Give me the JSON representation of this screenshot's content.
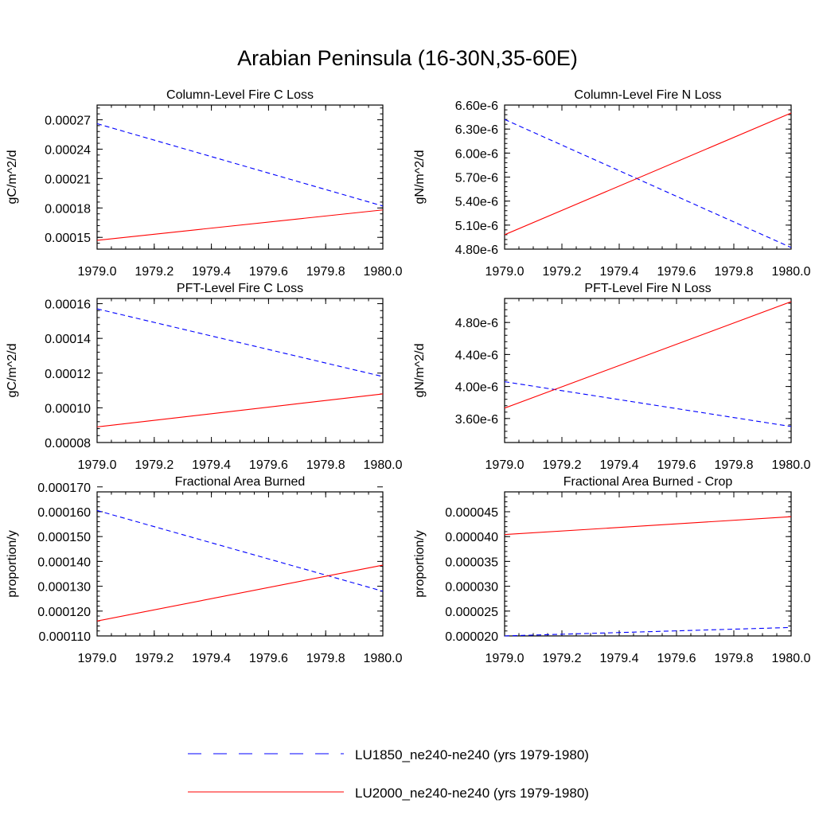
{
  "title": "Arabian Peninsula (16-30N,35-60E)",
  "colors": {
    "LU1850": "#0000ff",
    "LU2000": "#ff0000"
  },
  "legend": [
    {
      "key": "LU1850",
      "label": "LU1850_ne240-ne240 (yrs 1979-1980)",
      "dash": true
    },
    {
      "key": "LU2000",
      "label": "LU2000_ne240-ne240 (yrs 1979-1980)",
      "dash": false
    }
  ],
  "chart_data": [
    {
      "type": "line",
      "title": "Column-Level Fire C Loss",
      "ylabel": "gC/m^2/d",
      "xlim": [
        1979.0,
        1980.0
      ],
      "ylim": [
        0.000138,
        0.000285
      ],
      "xticks": [
        "1979.0",
        "1979.2",
        "1979.4",
        "1979.6",
        "1979.8",
        "1980.0"
      ],
      "yticks": [
        {
          "v": 0.00015,
          "label": "0.00015"
        },
        {
          "v": 0.00018,
          "label": "0.00018"
        },
        {
          "v": 0.00021,
          "label": "0.00021"
        },
        {
          "v": 0.00024,
          "label": "0.00024"
        },
        {
          "v": 0.00027,
          "label": "0.00027"
        }
      ],
      "x": [
        1979.0,
        1980.0
      ],
      "series": [
        {
          "key": "LU1850",
          "values": [
            0.000266,
            0.000182
          ]
        },
        {
          "key": "LU2000",
          "values": [
            0.000147,
            0.000178
          ]
        }
      ]
    },
    {
      "type": "line",
      "title": "Column-Level Fire N Loss",
      "ylabel": "gN/m^2/d",
      "xlim": [
        1979.0,
        1980.0
      ],
      "ylim": [
        4.8e-06,
        6.6e-06
      ],
      "xticks": [
        "1979.0",
        "1979.2",
        "1979.4",
        "1979.6",
        "1979.8",
        "1980.0"
      ],
      "yticks": [
        {
          "v": 4.8e-06,
          "label": "4.80e-6"
        },
        {
          "v": 5.1e-06,
          "label": "5.10e-6"
        },
        {
          "v": 5.4e-06,
          "label": "5.40e-6"
        },
        {
          "v": 5.7e-06,
          "label": "5.70e-6"
        },
        {
          "v": 6e-06,
          "label": "6.00e-6"
        },
        {
          "v": 6.3e-06,
          "label": "6.30e-6"
        },
        {
          "v": 6.6e-06,
          "label": "6.60e-6"
        }
      ],
      "x": [
        1979.0,
        1980.0
      ],
      "series": [
        {
          "key": "LU1850",
          "values": [
            6.42e-06,
            4.82e-06
          ]
        },
        {
          "key": "LU2000",
          "values": [
            4.98e-06,
            6.5e-06
          ]
        }
      ]
    },
    {
      "type": "line",
      "title": "PFT-Level Fire C Loss",
      "ylabel": "gC/m^2/d",
      "xlim": [
        1979.0,
        1980.0
      ],
      "ylim": [
        8e-05,
        0.000163
      ],
      "xticks": [
        "1979.0",
        "1979.2",
        "1979.4",
        "1979.6",
        "1979.8",
        "1980.0"
      ],
      "yticks": [
        {
          "v": 8e-05,
          "label": "0.00008"
        },
        {
          "v": 0.0001,
          "label": "0.00010"
        },
        {
          "v": 0.00012,
          "label": "0.00012"
        },
        {
          "v": 0.00014,
          "label": "0.00014"
        },
        {
          "v": 0.00016,
          "label": "0.00016"
        }
      ],
      "x": [
        1979.0,
        1980.0
      ],
      "series": [
        {
          "key": "LU1850",
          "values": [
            0.000157,
            0.000118
          ]
        },
        {
          "key": "LU2000",
          "values": [
            8.9e-05,
            0.000108
          ]
        }
      ]
    },
    {
      "type": "line",
      "title": "PFT-Level Fire N Loss",
      "ylabel": "gN/m^2/d",
      "xlim": [
        1979.0,
        1980.0
      ],
      "ylim": [
        3.3e-06,
        5.1e-06
      ],
      "xticks": [
        "1979.0",
        "1979.2",
        "1979.4",
        "1979.6",
        "1979.8",
        "1980.0"
      ],
      "yticks": [
        {
          "v": 3.6e-06,
          "label": "3.60e-6"
        },
        {
          "v": 4e-06,
          "label": "4.00e-6"
        },
        {
          "v": 4.4e-06,
          "label": "4.40e-6"
        },
        {
          "v": 4.8e-06,
          "label": "4.80e-6"
        }
      ],
      "x": [
        1979.0,
        1980.0
      ],
      "series": [
        {
          "key": "LU1850",
          "values": [
            4.06e-06,
            3.5e-06
          ]
        },
        {
          "key": "LU2000",
          "values": [
            3.73e-06,
            5.06e-06
          ]
        }
      ]
    },
    {
      "type": "line",
      "title": "Fractional Area Burned",
      "ylabel": "proportion/y",
      "xlim": [
        1979.0,
        1980.0
      ],
      "ylim": [
        0.00011,
        0.000168
      ],
      "xticks": [
        "1979.0",
        "1979.2",
        "1979.4",
        "1979.6",
        "1979.8",
        "1980.0"
      ],
      "yticks": [
        {
          "v": 0.00011,
          "label": "0.000110"
        },
        {
          "v": 0.00012,
          "label": "0.000120"
        },
        {
          "v": 0.00013,
          "label": "0.000130"
        },
        {
          "v": 0.00014,
          "label": "0.000140"
        },
        {
          "v": 0.00015,
          "label": "0.000150"
        },
        {
          "v": 0.00016,
          "label": "0.000160"
        },
        {
          "v": 0.00017,
          "label": "0.000170"
        }
      ],
      "x": [
        1979.0,
        1980.0
      ],
      "series": [
        {
          "key": "LU1850",
          "values": [
            0.0001605,
            0.000128
          ]
        },
        {
          "key": "LU2000",
          "values": [
            0.000116,
            0.0001385
          ]
        }
      ]
    },
    {
      "type": "line",
      "title": "Fractional Area Burned - Crop",
      "ylabel": "proportion/y",
      "xlim": [
        1979.0,
        1980.0
      ],
      "ylim": [
        2e-05,
        4.9e-05
      ],
      "xticks": [
        "1979.0",
        "1979.2",
        "1979.4",
        "1979.6",
        "1979.8",
        "1980.0"
      ],
      "yticks": [
        {
          "v": 2e-05,
          "label": "0.000020"
        },
        {
          "v": 2.5e-05,
          "label": "0.000025"
        },
        {
          "v": 3e-05,
          "label": "0.000030"
        },
        {
          "v": 3.5e-05,
          "label": "0.000035"
        },
        {
          "v": 4e-05,
          "label": "0.000040"
        },
        {
          "v": 4.5e-05,
          "label": "0.000045"
        }
      ],
      "x": [
        1979.0,
        1980.0
      ],
      "series": [
        {
          "key": "LU1850",
          "values": [
            2e-05,
            2.17e-05
          ]
        },
        {
          "key": "LU2000",
          "values": [
            4.04e-05,
            4.4e-05
          ]
        }
      ]
    }
  ]
}
